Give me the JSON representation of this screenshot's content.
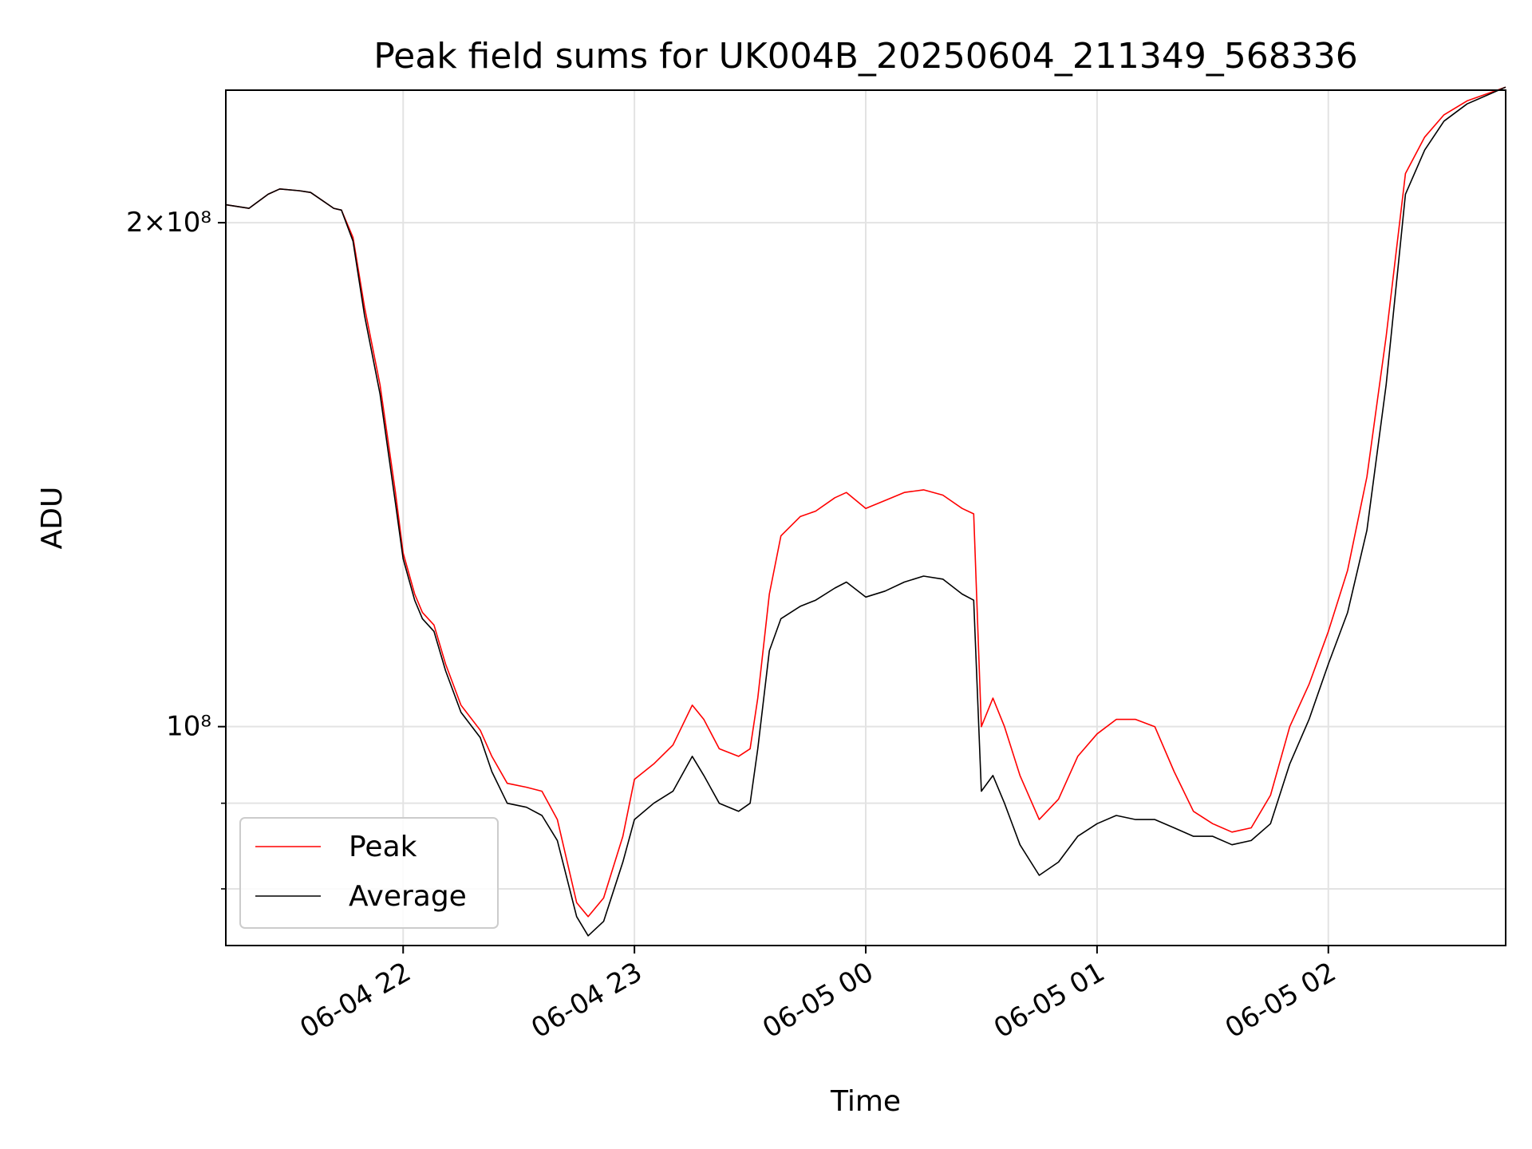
{
  "chart_data": {
    "type": "line",
    "title": "Peak field sums for UK004B_20250604_211349_568336",
    "xlabel": "Time",
    "ylabel": "ADU",
    "x_scale": "time",
    "y_scale": "log",
    "x_range": [
      "06-04 21:14",
      "06-05 02:46"
    ],
    "ylim": [
      74000000,
      240000000
    ],
    "x_ticks": [
      {
        "x": "06-04 22:00",
        "label": "06-04 22"
      },
      {
        "x": "06-04 23:00",
        "label": "06-04 23"
      },
      {
        "x": "06-05 00:00",
        "label": "06-05 00"
      },
      {
        "x": "06-05 01:00",
        "label": "06-05 01"
      },
      {
        "x": "06-05 02:00",
        "label": "06-05 02"
      }
    ],
    "y_major_ticks": [
      {
        "y": 100000000,
        "label": "10⁸"
      },
      {
        "y": 200000000,
        "label": "2×10⁸"
      }
    ],
    "y_minor_ticks": [
      80000000,
      90000000
    ],
    "grid": true,
    "legend": {
      "placement": "lower-left"
    },
    "series": [
      {
        "name": "Peak",
        "color": "#ff0000",
        "points": [
          [
            "06-04 21:14",
            205000000
          ],
          [
            "06-04 21:20",
            204000000
          ],
          [
            "06-04 21:25",
            208000000
          ],
          [
            "06-04 21:28",
            209500000
          ],
          [
            "06-04 21:33",
            209000000
          ],
          [
            "06-04 21:36",
            208500000
          ],
          [
            "06-04 21:42",
            204000000
          ],
          [
            "06-04 21:44",
            203500000
          ],
          [
            "06-04 21:47",
            196000000
          ],
          [
            "06-04 21:50",
            178000000
          ],
          [
            "06-04 21:54",
            160000000
          ],
          [
            "06-04 21:58",
            138000000
          ],
          [
            "06-04 22:00",
            127000000
          ],
          [
            "06-04 22:03",
            120000000
          ],
          [
            "06-04 22:05",
            117000000
          ],
          [
            "06-04 22:08",
            115000000
          ],
          [
            "06-04 22:11",
            109000000
          ],
          [
            "06-04 22:15",
            103000000
          ],
          [
            "06-04 22:20",
            99500000
          ],
          [
            "06-04 22:23",
            96000000
          ],
          [
            "06-04 22:27",
            92500000
          ],
          [
            "06-04 22:32",
            92000000
          ],
          [
            "06-04 22:36",
            91500000
          ],
          [
            "06-04 22:40",
            88000000
          ],
          [
            "06-04 22:45",
            78500000
          ],
          [
            "06-04 22:48",
            77000000
          ],
          [
            "06-04 22:52",
            79000000
          ],
          [
            "06-04 22:57",
            86000000
          ],
          [
            "06-04 23:00",
            93000000
          ],
          [
            "06-04 23:05",
            95000000
          ],
          [
            "06-04 23:10",
            97500000
          ],
          [
            "06-04 23:15",
            103000000
          ],
          [
            "06-04 23:18",
            101000000
          ],
          [
            "06-04 23:22",
            97000000
          ],
          [
            "06-04 23:27",
            96000000
          ],
          [
            "06-04 23:30",
            97000000
          ],
          [
            "06-04 23:32",
            104000000
          ],
          [
            "06-04 23:35",
            120000000
          ],
          [
            "06-04 23:38",
            130000000
          ],
          [
            "06-04 23:43",
            133500000
          ],
          [
            "06-04 23:47",
            134500000
          ],
          [
            "06-04 23:52",
            137000000
          ],
          [
            "06-04 23:55",
            138000000
          ],
          [
            "06-05 00:00",
            135000000
          ],
          [
            "06-05 00:05",
            136500000
          ],
          [
            "06-05 00:10",
            138000000
          ],
          [
            "06-05 00:15",
            138500000
          ],
          [
            "06-05 00:20",
            137500000
          ],
          [
            "06-05 00:25",
            135000000
          ],
          [
            "06-05 00:28",
            134000000
          ],
          [
            "06-05 00:30",
            100000000
          ],
          [
            "06-05 00:33",
            104000000
          ],
          [
            "06-05 00:36",
            100000000
          ],
          [
            "06-05 00:40",
            93500000
          ],
          [
            "06-05 00:45",
            88000000
          ],
          [
            "06-05 00:50",
            90500000
          ],
          [
            "06-05 00:55",
            96000000
          ],
          [
            "06-05 01:00",
            99000000
          ],
          [
            "06-05 01:05",
            101000000
          ],
          [
            "06-05 01:10",
            101000000
          ],
          [
            "06-05 01:15",
            100000000
          ],
          [
            "06-05 01:20",
            94000000
          ],
          [
            "06-05 01:25",
            89000000
          ],
          [
            "06-05 01:30",
            87500000
          ],
          [
            "06-05 01:35",
            86500000
          ],
          [
            "06-05 01:40",
            87000000
          ],
          [
            "06-05 01:45",
            91000000
          ],
          [
            "06-05 01:50",
            100000000
          ],
          [
            "06-05 01:55",
            106000000
          ],
          [
            "06-05 02:00",
            114000000
          ],
          [
            "06-05 02:05",
            124000000
          ],
          [
            "06-05 02:10",
            141000000
          ],
          [
            "06-05 02:15",
            171000000
          ],
          [
            "06-05 02:20",
            214000000
          ],
          [
            "06-05 02:25",
            225000000
          ],
          [
            "06-05 02:30",
            232000000
          ],
          [
            "06-05 02:36",
            236500000
          ],
          [
            "06-05 02:46",
            241000000
          ]
        ]
      },
      {
        "name": "Average",
        "color": "#000000",
        "points": [
          [
            "06-04 21:14",
            205000000
          ],
          [
            "06-04 21:20",
            204000000
          ],
          [
            "06-04 21:25",
            208000000
          ],
          [
            "06-04 21:28",
            209500000
          ],
          [
            "06-04 21:33",
            209000000
          ],
          [
            "06-04 21:36",
            208500000
          ],
          [
            "06-04 21:42",
            204000000
          ],
          [
            "06-04 21:44",
            203500000
          ],
          [
            "06-04 21:47",
            195000000
          ],
          [
            "06-04 21:50",
            176000000
          ],
          [
            "06-04 21:54",
            158000000
          ],
          [
            "06-04 21:58",
            136000000
          ],
          [
            "06-04 22:00",
            126000000
          ],
          [
            "06-04 22:03",
            119000000
          ],
          [
            "06-04 22:05",
            116000000
          ],
          [
            "06-04 22:08",
            114000000
          ],
          [
            "06-04 22:11",
            108000000
          ],
          [
            "06-04 22:15",
            102000000
          ],
          [
            "06-04 22:20",
            98500000
          ],
          [
            "06-04 22:23",
            94000000
          ],
          [
            "06-04 22:27",
            90000000
          ],
          [
            "06-04 22:32",
            89500000
          ],
          [
            "06-04 22:36",
            88500000
          ],
          [
            "06-04 22:40",
            85500000
          ],
          [
            "06-04 22:45",
            77000000
          ],
          [
            "06-04 22:48",
            75000000
          ],
          [
            "06-04 22:52",
            76500000
          ],
          [
            "06-04 22:57",
            83000000
          ],
          [
            "06-04 23:00",
            88000000
          ],
          [
            "06-04 23:05",
            90000000
          ],
          [
            "06-04 23:10",
            91500000
          ],
          [
            "06-04 23:15",
            96000000
          ],
          [
            "06-04 23:18",
            93500000
          ],
          [
            "06-04 23:22",
            90000000
          ],
          [
            "06-04 23:27",
            89000000
          ],
          [
            "06-04 23:30",
            90000000
          ],
          [
            "06-04 23:32",
            97000000
          ],
          [
            "06-04 23:35",
            111000000
          ],
          [
            "06-04 23:38",
            116000000
          ],
          [
            "06-04 23:43",
            118000000
          ],
          [
            "06-04 23:47",
            119000000
          ],
          [
            "06-04 23:52",
            121000000
          ],
          [
            "06-04 23:55",
            122000000
          ],
          [
            "06-05 00:00",
            119500000
          ],
          [
            "06-05 00:05",
            120500000
          ],
          [
            "06-05 00:10",
            122000000
          ],
          [
            "06-05 00:15",
            123000000
          ],
          [
            "06-05 00:20",
            122500000
          ],
          [
            "06-05 00:25",
            120000000
          ],
          [
            "06-05 00:28",
            119000000
          ],
          [
            "06-05 00:30",
            91500000
          ],
          [
            "06-05 00:33",
            93500000
          ],
          [
            "06-05 00:36",
            90000000
          ],
          [
            "06-05 00:40",
            85000000
          ],
          [
            "06-05 00:45",
            81500000
          ],
          [
            "06-05 00:50",
            83000000
          ],
          [
            "06-05 00:55",
            86000000
          ],
          [
            "06-05 01:00",
            87500000
          ],
          [
            "06-05 01:05",
            88500000
          ],
          [
            "06-05 01:10",
            88000000
          ],
          [
            "06-05 01:15",
            88000000
          ],
          [
            "06-05 01:20",
            87000000
          ],
          [
            "06-05 01:25",
            86000000
          ],
          [
            "06-05 01:30",
            86000000
          ],
          [
            "06-05 01:35",
            85000000
          ],
          [
            "06-05 01:40",
            85500000
          ],
          [
            "06-05 01:45",
            87500000
          ],
          [
            "06-05 01:50",
            95000000
          ],
          [
            "06-05 01:55",
            101000000
          ],
          [
            "06-05 02:00",
            109000000
          ],
          [
            "06-05 02:05",
            117000000
          ],
          [
            "06-05 02:10",
            131000000
          ],
          [
            "06-05 02:15",
            160000000
          ],
          [
            "06-05 02:20",
            208000000
          ],
          [
            "06-05 02:25",
            221000000
          ],
          [
            "06-05 02:30",
            230000000
          ],
          [
            "06-05 02:36",
            235500000
          ],
          [
            "06-05 02:46",
            241000000
          ]
        ]
      }
    ]
  }
}
